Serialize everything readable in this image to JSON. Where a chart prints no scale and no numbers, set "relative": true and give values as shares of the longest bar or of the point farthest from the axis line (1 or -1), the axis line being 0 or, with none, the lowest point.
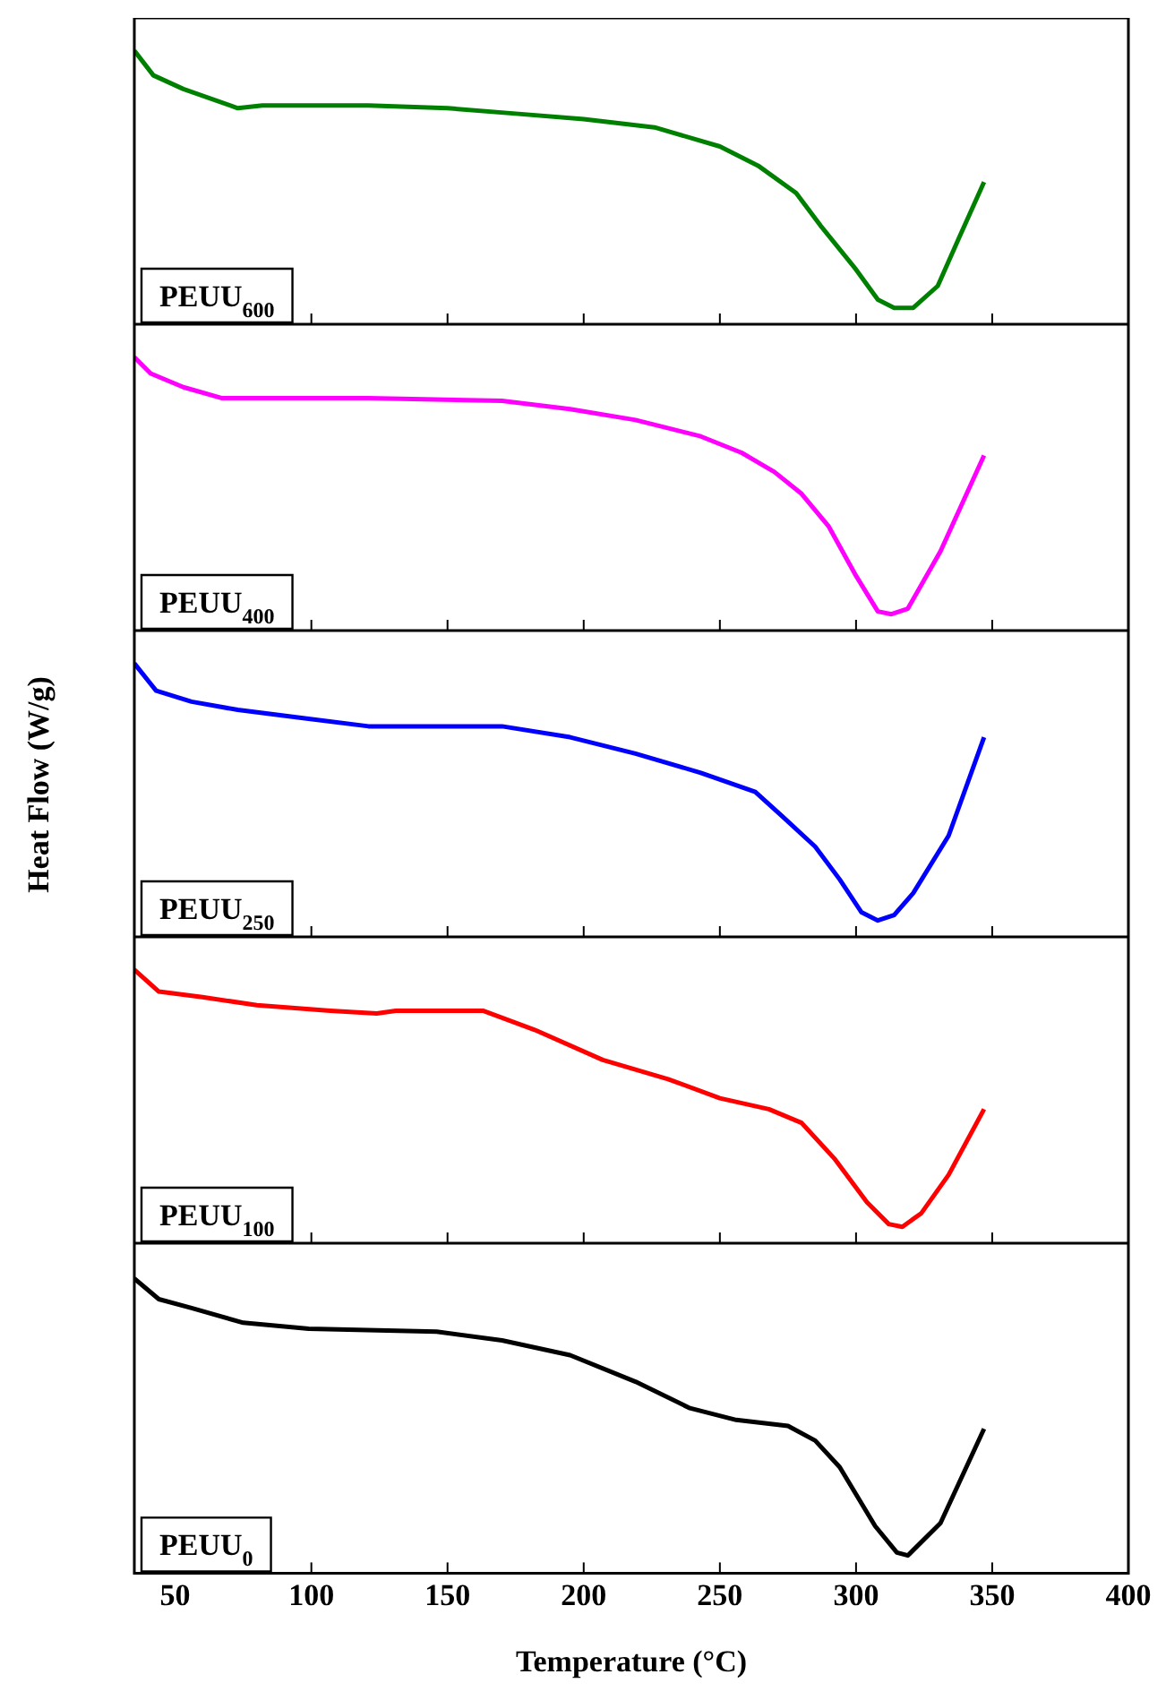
{
  "chart_data": [
    {
      "type": "line",
      "relative": true,
      "tick_labels": false,
      "xlim": [
        35,
        400
      ],
      "xticks": [
        50,
        100,
        150,
        200,
        250,
        300,
        350,
        400
      ],
      "annotations": [
        "PEUU$_{600}$"
      ],
      "x": [
        35,
        42,
        53,
        73,
        82,
        121,
        150,
        175,
        200,
        226,
        250,
        264,
        278,
        287,
        300,
        308,
        314,
        321,
        330,
        338,
        347
      ],
      "series": [
        {
          "color": "#008000",
          "values": [
            1,
            0.91,
            0.86,
            0.79,
            0.8,
            0.8,
            0.79,
            0.77,
            0.75,
            0.72,
            0.65,
            0.58,
            0.48,
            0.36,
            0.2,
            0.09,
            0.06,
            0.06,
            0.14,
            0.32,
            0.52
          ]
        }
      ]
    },
    {
      "type": "line",
      "relative": true,
      "tick_labels": false,
      "xlim": [
        35,
        400
      ],
      "xticks": [
        50,
        100,
        150,
        200,
        250,
        300,
        350,
        400
      ],
      "annotations": [
        "PEUU$_{400}$"
      ],
      "x": [
        35,
        41,
        53,
        67,
        121,
        170,
        195,
        219,
        243,
        258,
        270,
        280,
        290,
        300,
        308,
        313,
        319,
        331,
        347
      ],
      "series": [
        {
          "color": "#ff00ff",
          "values": [
            1,
            0.94,
            0.89,
            0.85,
            0.85,
            0.84,
            0.81,
            0.77,
            0.71,
            0.65,
            0.58,
            0.5,
            0.38,
            0.2,
            0.07,
            0.06,
            0.08,
            0.29,
            0.64
          ]
        }
      ]
    },
    {
      "type": "line",
      "relative": true,
      "tick_labels": false,
      "xlim": [
        35,
        400
      ],
      "xticks": [
        50,
        100,
        150,
        200,
        250,
        300,
        350,
        400
      ],
      "ylabel": "Heat Flow (W/g)",
      "annotations": [
        "PEUU$_{250}$"
      ],
      "x": [
        35,
        43,
        56,
        73,
        97,
        121,
        170,
        195,
        219,
        243,
        263,
        273,
        285,
        294,
        302,
        308,
        314,
        321,
        334,
        347
      ],
      "series": [
        {
          "color": "#0000ff",
          "values": [
            1,
            0.9,
            0.86,
            0.83,
            0.8,
            0.77,
            0.77,
            0.73,
            0.67,
            0.6,
            0.53,
            0.44,
            0.33,
            0.21,
            0.09,
            0.06,
            0.08,
            0.16,
            0.37,
            0.73
          ]
        }
      ]
    },
    {
      "type": "line",
      "relative": true,
      "tick_labels": false,
      "xlim": [
        35,
        400
      ],
      "xticks": [
        50,
        100,
        150,
        200,
        250,
        300,
        350,
        400
      ],
      "annotations": [
        "PEUU$_{100}$"
      ],
      "x": [
        35,
        44,
        60,
        80,
        107,
        124,
        131,
        163,
        182,
        207,
        231,
        250,
        268,
        280,
        292,
        304,
        312,
        317,
        324,
        334,
        347
      ],
      "series": [
        {
          "color": "#ff0000",
          "values": [
            1,
            0.92,
            0.9,
            0.87,
            0.85,
            0.84,
            0.85,
            0.85,
            0.78,
            0.67,
            0.6,
            0.53,
            0.49,
            0.44,
            0.31,
            0.15,
            0.07,
            0.06,
            0.11,
            0.25,
            0.49
          ]
        }
      ]
    },
    {
      "type": "line",
      "relative": true,
      "tick_labels": "x",
      "xlim": [
        35,
        400
      ],
      "xticks": [
        50,
        100,
        150,
        200,
        250,
        300,
        350,
        400
      ],
      "xlabel": "Temperature (°C)",
      "annotations": [
        "PEUU$_{0}$"
      ],
      "x": [
        35,
        44,
        56,
        75,
        99,
        146,
        170,
        195,
        219,
        239,
        256,
        275,
        285,
        294,
        307,
        315,
        319,
        331,
        347
      ],
      "series": [
        {
          "color": "#000000",
          "values": [
            1,
            0.93,
            0.9,
            0.85,
            0.83,
            0.82,
            0.79,
            0.74,
            0.65,
            0.56,
            0.52,
            0.5,
            0.45,
            0.36,
            0.16,
            0.07,
            0.06,
            0.17,
            0.49
          ]
        }
      ]
    }
  ]
}
